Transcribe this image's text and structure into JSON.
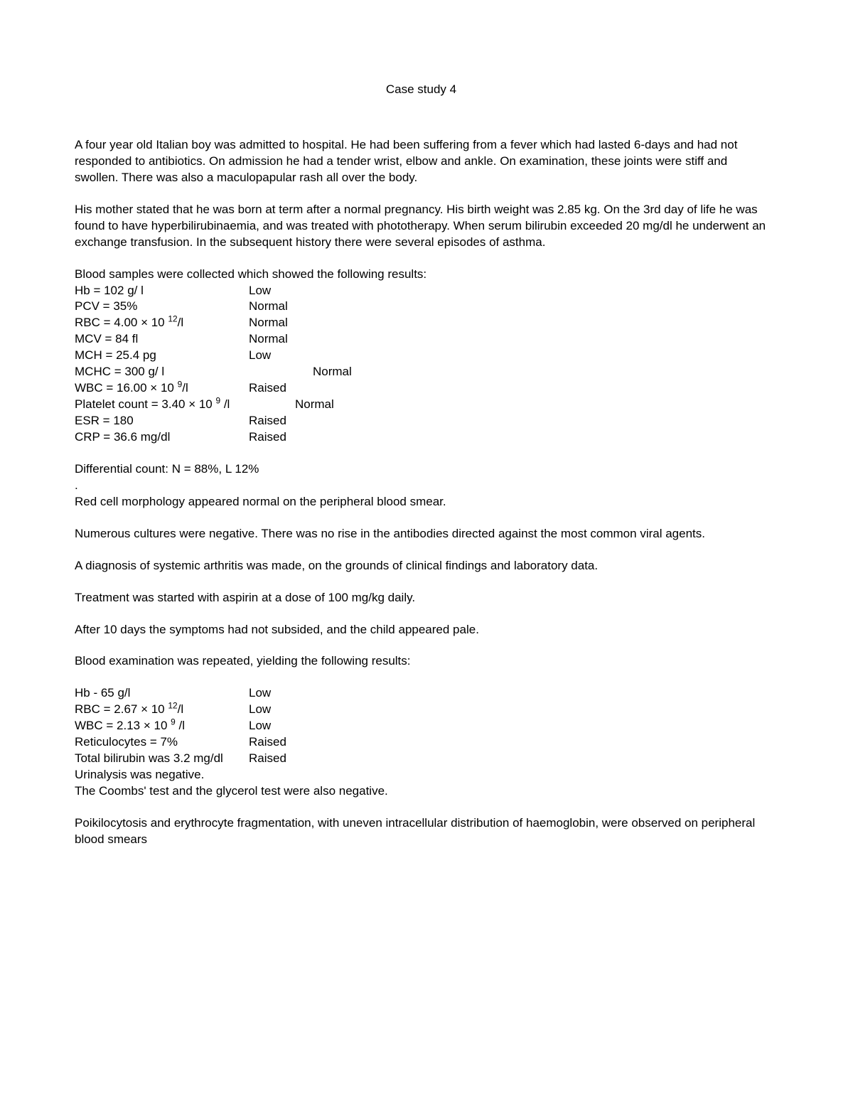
{
  "title": "Case study 4",
  "para1": "A four year old Italian boy was admitted to hospital. He had been suffering from a fever which had lasted 6-days and had not responded to antibiotics. On admission he had a tender wrist, elbow and ankle. On examination, these joints were stiff and swollen. There was also a maculopapular rash all over the body.",
  "para2": "His mother stated that he was born at term after a normal pregnancy. His birth weight was 2.85 kg. On the 3rd day of life he was found to have hyperbilirubinaemia, and was treated with phototherapy. When serum bilirubin exceeded 20 mg/dl he underwent an exchange transfusion. In the subsequent history there were several episodes of asthma.",
  "labIntro1": "Blood samples were collected which showed the following results:",
  "labs1": [
    {
      "label_html": "Hb = 102 g/ l",
      "value": "Low",
      "indent": false
    },
    {
      "label_html": "PCV = 35%",
      "value": "Normal",
      "indent": false
    },
    {
      "label_html": "RBC = 4.00 × 10 <sup>12</sup>/l",
      "value": "Normal",
      "indent": false
    },
    {
      "label_html": "MCV = 84 fl",
      "value": "Normal",
      "indent": false
    },
    {
      "label_html": "MCH = 25.4 pg",
      "value": "Low",
      "indent": false
    },
    {
      "label_html": "MCHC = 300 g/ l",
      "value": "Normal",
      "indent": true
    },
    {
      "label_html": "WBC = 16.00 × 10 <sup>9</sup>/l",
      "value": "Raised",
      "indent": false
    },
    {
      "label_html": "Platelet count = 3.40 × 10 <sup>9</sup> /l",
      "value": "Normal",
      "wide": true
    },
    {
      "label_html": "ESR = 180",
      "value": "Raised",
      "indent": false
    },
    {
      "label_html": "CRP = 36.6 mg/dl",
      "value": "Raised",
      "indent": false
    }
  ],
  "diffCount": "Differential count: N = 88%, L 12%",
  "dot": ".",
  "morph1": "Red cell morphology appeared normal on the peripheral blood smear.",
  "cultures": "Numerous cultures were negative. There was no rise in the antibodies directed against the most common viral agents.",
  "diagnosis": "A diagnosis of systemic arthritis was made, on the grounds of clinical findings and laboratory data.",
  "treatment": "Treatment was started with aspirin at a dose of 100 mg/kg daily.",
  "after10": "After 10 days the symptoms had not subsided, and the child appeared pale.",
  "labIntro2": "Blood examination was repeated, yielding the following results:",
  "labs2": [
    {
      "label_html": "Hb - 65 g/l",
      "value": "Low"
    },
    {
      "label_html": "RBC = 2.67 × 10 <sup>12</sup>/l",
      "value": "Low"
    },
    {
      "label_html": "WBC = 2.13 × 10 <sup>9</sup> /l",
      "value": "Low"
    },
    {
      "label_html": "Reticulocytes = 7%",
      "value": "Raised"
    },
    {
      "label_html": "Total bilirubin was 3.2 mg/dl",
      "value": "Raised"
    }
  ],
  "urinalysis": "Urinalysis was negative.",
  "coombs": "The Coombs' test and the glycerol test were also negative.",
  "poikilo": "Poikilocytosis and erythrocyte fragmentation, with uneven intracellular distribution of haemoglobin, were observed on peripheral blood smears"
}
